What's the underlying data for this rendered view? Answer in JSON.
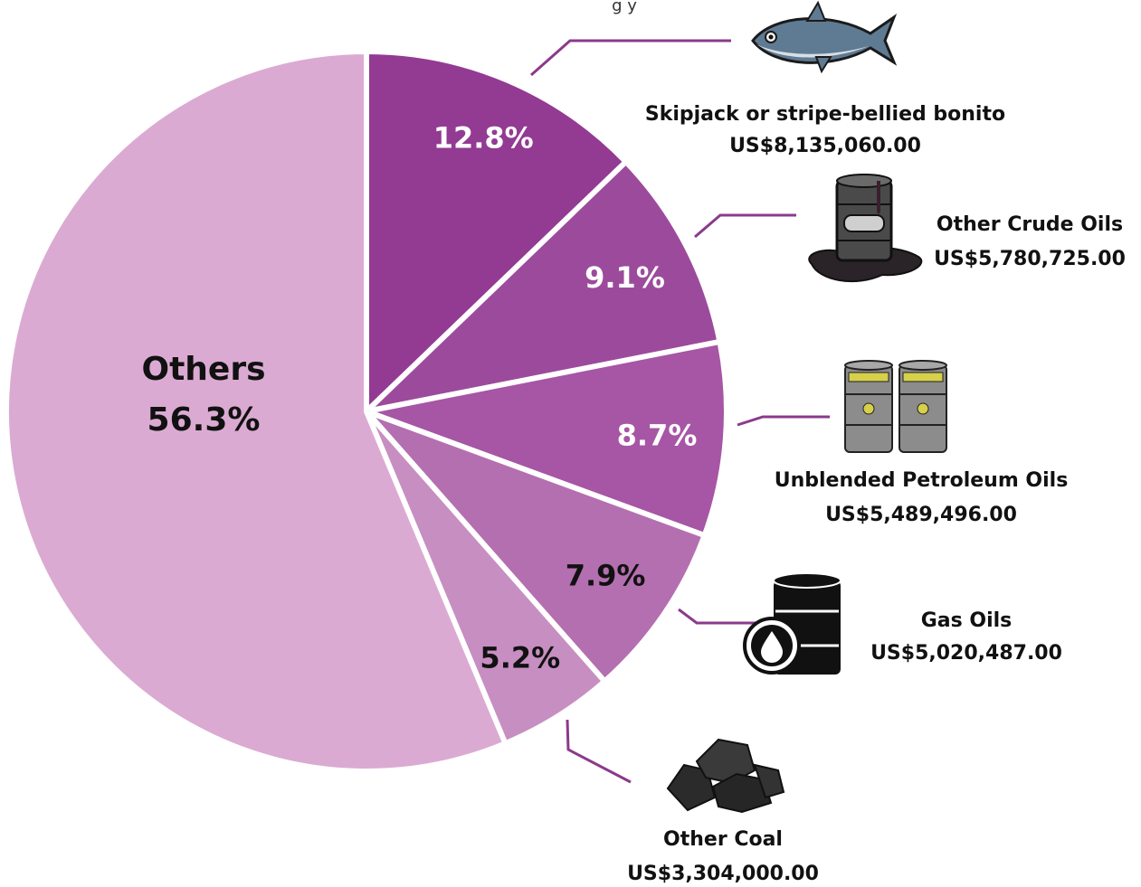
{
  "chart_data": {
    "type": "pie",
    "subtitle_fragment": "g     y",
    "slices": [
      {
        "label": "Skipjack or stripe-bellied bonito",
        "percent": 12.8,
        "percent_label": "12.8%",
        "value_label": "US$8,135,060.00",
        "color": "#933a93",
        "icon": "tuna-fish-icon"
      },
      {
        "label": "Other Crude Oils",
        "percent": 9.1,
        "percent_label": "9.1%",
        "value_label": "US$5,780,725.00",
        "color": "#9c4b9c",
        "icon": "crude-oil-barrel-icon"
      },
      {
        "label": "Unblended Petroleum Oils",
        "percent": 8.7,
        "percent_label": "8.7%",
        "value_label": "US$5,489,496.00",
        "color": "#a656a5",
        "icon": "twin-barrels-icon"
      },
      {
        "label": "Gas Oils",
        "percent": 7.9,
        "percent_label": "7.9%",
        "value_label": "US$5,020,487.00",
        "color": "#b46fb0",
        "icon": "oil-drum-icon"
      },
      {
        "label": "Other Coal",
        "percent": 5.2,
        "percent_label": "5.2%",
        "value_label": "US$3,304,000.00",
        "color": "#c78ec2",
        "icon": "coal-lumps-icon"
      },
      {
        "label": "Others",
        "percent": 56.3,
        "percent_label": "56.3%",
        "color": "#dbaad2"
      }
    ],
    "leader_color": "#8b3a8b",
    "legend": "none"
  }
}
